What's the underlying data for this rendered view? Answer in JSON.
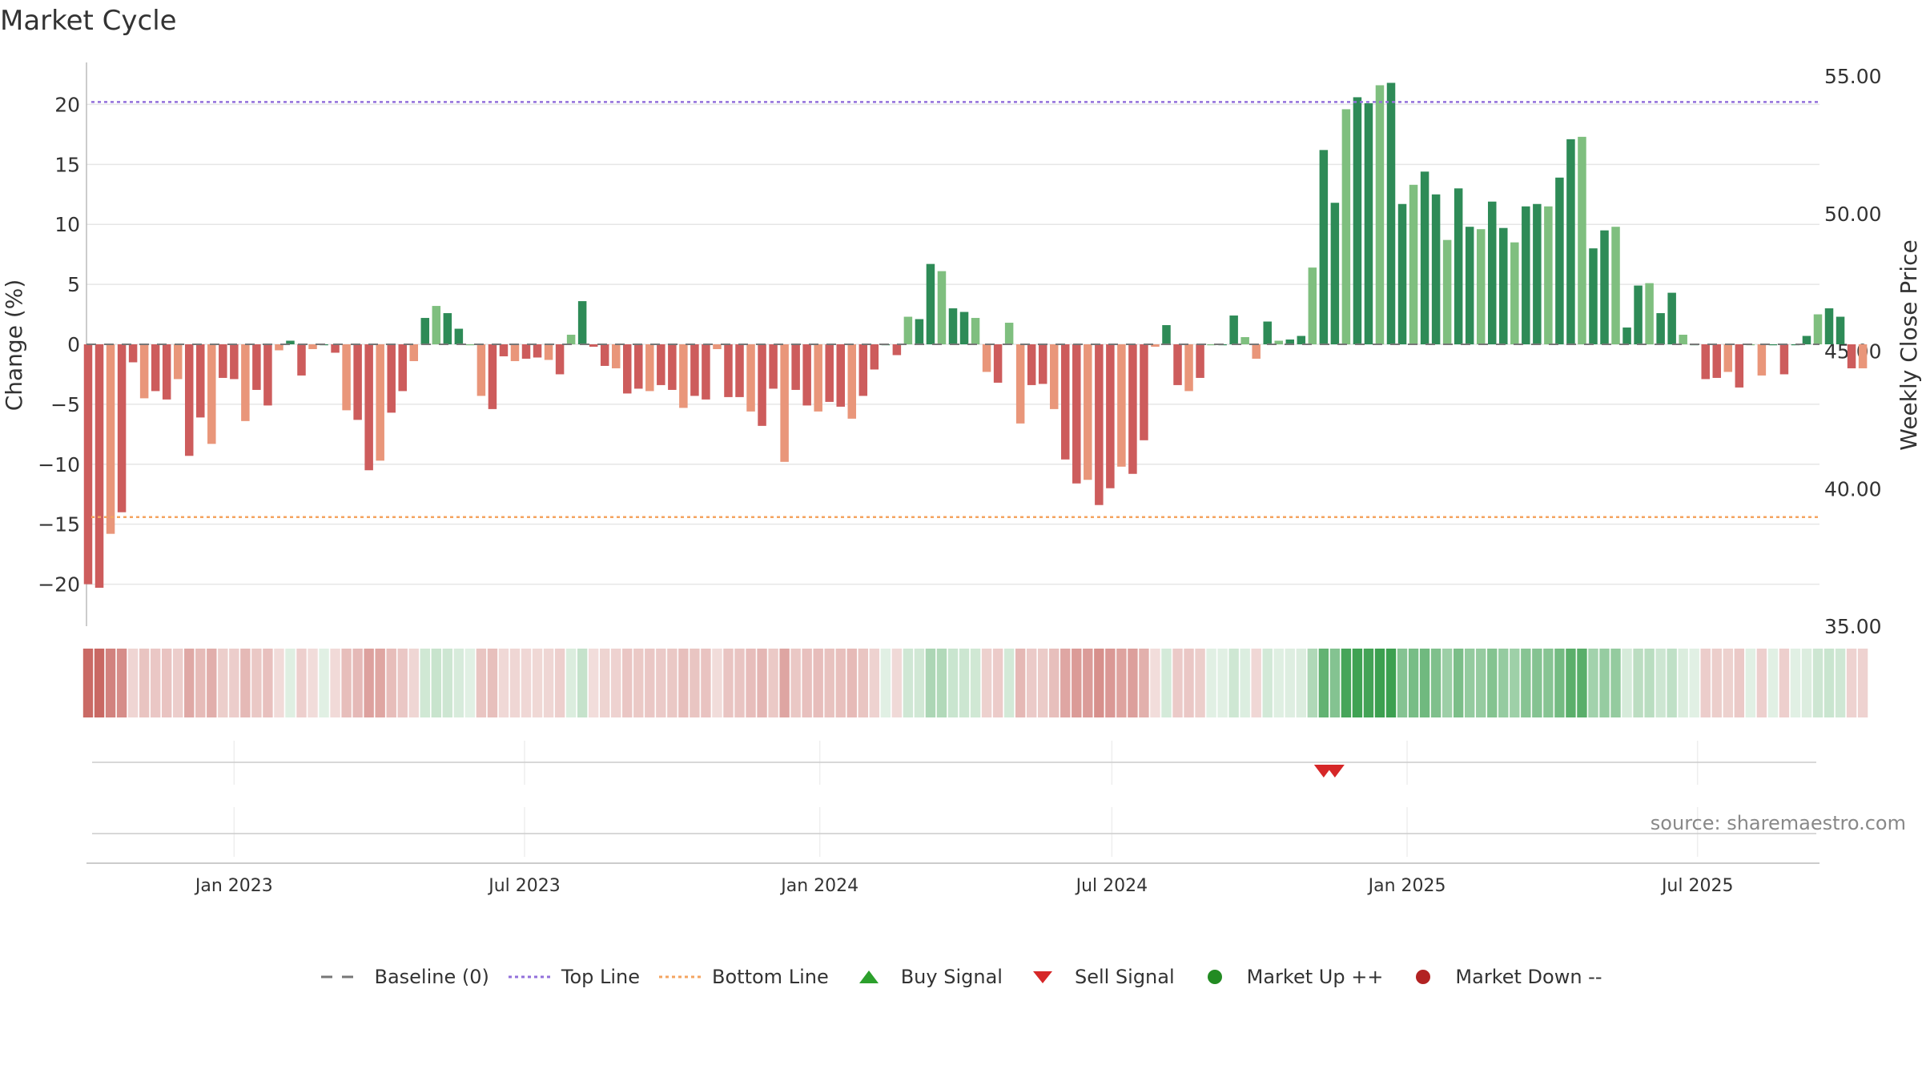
{
  "title": "Market Cycle",
  "source": "source: sharemaestro.com",
  "colors": {
    "dark_green": "#2e8b57",
    "light_green": "#7fbf7f",
    "dark_red": "#cd5c5c",
    "light_red": "#e9967a",
    "top_line": "#9370db",
    "bottom_line": "#f4a460",
    "baseline": "#777777",
    "sell_marker": "#d62728",
    "buy_marker": "#2ca02c",
    "market_up": "#228b22",
    "market_down": "#b22222"
  },
  "legend": [
    {
      "key": "baseline",
      "label": "Baseline (0)",
      "icon": "dash-line"
    },
    {
      "key": "top",
      "label": "Top Line",
      "icon": "dotted-line"
    },
    {
      "key": "bottom",
      "label": "Bottom Line",
      "icon": "dotted-line"
    },
    {
      "key": "buy",
      "label": "Buy Signal",
      "icon": "triangle-up-icon"
    },
    {
      "key": "sell",
      "label": "Sell Signal",
      "icon": "triangle-down-icon"
    },
    {
      "key": "up",
      "label": "Market Up ++",
      "icon": "circle-icon"
    },
    {
      "key": "down",
      "label": "Market Down --",
      "icon": "circle-icon"
    }
  ],
  "chart_data": {
    "type": "bar",
    "ylabel": "Change (%)",
    "y2label": "Weekly Close Price",
    "ylim": [
      -23.5,
      23.5
    ],
    "yticks": [
      20,
      15,
      10,
      5,
      0,
      -5,
      -10,
      -15,
      -20
    ],
    "y2lim": [
      35.0,
      55.5
    ],
    "y2ticks": [
      55.0,
      50.0,
      45.0,
      40.0,
      35.0
    ],
    "top_line": 20.2,
    "bottom_line": -14.4,
    "x_start": "2022-10-01",
    "x_end": "2025-09-15",
    "x_ticks": [
      {
        "date": "2023-01-01",
        "label": "Jan 2023"
      },
      {
        "date": "2023-07-01",
        "label": "Jul 2023"
      },
      {
        "date": "2024-01-01",
        "label": "Jan 2024"
      },
      {
        "date": "2024-07-01",
        "label": "Jul 2024"
      },
      {
        "date": "2025-01-01",
        "label": "Jan 2025"
      },
      {
        "date": "2025-07-01",
        "label": "Jul 2025"
      }
    ],
    "first_week": "2022-10-02",
    "week_step_days": 7,
    "values": [
      -20,
      -20.3,
      -15.8,
      -14,
      -1.5,
      -4.5,
      -3.9,
      -4.6,
      -2.9,
      -9.3,
      -6.1,
      -8.3,
      -2.8,
      -2.9,
      -6.4,
      -3.8,
      -5.1,
      -0.5,
      0.3,
      -2.6,
      -0.4,
      0,
      -0.7,
      -5.5,
      -6.3,
      -10.5,
      -9.7,
      -5.7,
      -3.9,
      -1.4,
      2.2,
      3.2,
      2.6,
      1.3,
      0,
      -4.3,
      -5.4,
      -1,
      -1.4,
      -1.2,
      -1.1,
      -1.3,
      -2.5,
      0.8,
      3.6,
      -0.2,
      -1.8,
      -2,
      -4.1,
      -3.7,
      -3.9,
      -3.4,
      -3.8,
      -5.3,
      -4.3,
      -4.6,
      -0.4,
      -4.4,
      -4.4,
      -5.6,
      -6.8,
      -3.7,
      -9.8,
      -3.8,
      -5.1,
      -5.6,
      -4.8,
      -5.2,
      -6.2,
      -4.3,
      -2.1,
      0,
      -0.9,
      2.3,
      2.1,
      6.7,
      6.1,
      3,
      2.7,
      2.2,
      -2.3,
      -3.2,
      1.8,
      -6.6,
      -3.4,
      -3.3,
      -5.4,
      -9.6,
      -11.6,
      -11.3,
      -13.4,
      -12,
      -10.2,
      -10.8,
      -8,
      -0.2,
      1.6,
      -3.4,
      -3.9,
      -2.8,
      0,
      0,
      2.4,
      0.6,
      -1.2,
      1.9,
      0.3,
      0.4,
      0.7,
      6.4,
      16.2,
      11.8,
      19.6,
      20.6,
      20.1,
      21.6,
      21.8,
      11.7,
      13.3,
      14.4,
      12.5,
      8.7,
      13,
      9.8,
      9.6,
      11.9,
      9.7,
      8.5,
      11.5,
      11.7,
      11.5,
      13.9,
      17.1,
      17.3,
      8,
      9.5,
      9.8,
      1.4,
      4.9,
      5.1,
      2.6,
      4.3,
      0.8,
      0,
      -2.9,
      -2.8,
      -2.3,
      -3.6,
      0,
      -2.6,
      0,
      -2.5,
      0,
      0.7,
      2.5,
      3,
      2.3,
      -2,
      -2
    ],
    "sell_signals": [
      {
        "date": "2024-11-10"
      },
      {
        "date": "2024-11-17"
      }
    ],
    "buy_signals": []
  }
}
